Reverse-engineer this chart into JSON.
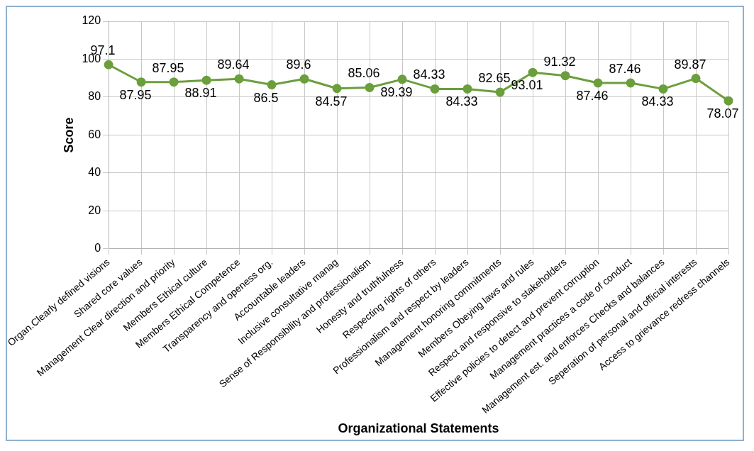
{
  "chart_data": {
    "type": "line",
    "xlabel": "Organizational Statements",
    "ylabel": "Score",
    "categories": [
      "Organ.Clearly defined visions",
      "Shared core values",
      "Management Clear direction and priority",
      "Members Ethical culture",
      "Members Ethical Competence",
      "Transparency and openess org.",
      "Accountable leaders",
      "Inclusive consultative manag",
      "Sense of Responsibility and professionalism",
      "Honesty and truthfulness",
      "Respecting rights of others",
      "Professionalism and respect by leaders",
      "Management honoring commitments",
      "Members Obeying laws and rules",
      "Respect and responsive to stakeholders",
      "Effective policies to detect and prevent corruption",
      "Management practices a code of conduct",
      "Management est. and enforces Checks and balances",
      "Seperation of personal and official interests",
      "Access to grievance redress channels"
    ],
    "series": [
      {
        "color": "#6b9e3c",
        "values": [
          97.1,
          87.95,
          87.95,
          88.91,
          89.64,
          86.5,
          89.6,
          84.57,
          85.06,
          89.39,
          84.33,
          84.33,
          82.65,
          93.01,
          91.32,
          87.46,
          87.46,
          84.33,
          89.87,
          78.07
        ]
      }
    ],
    "ylim": [
      0,
      120
    ],
    "yticks": [
      0,
      20,
      40,
      60,
      80,
      100,
      120
    ],
    "grid": true,
    "legend": false,
    "marker": "circle",
    "line_style": "solid",
    "data_labels": true
  }
}
